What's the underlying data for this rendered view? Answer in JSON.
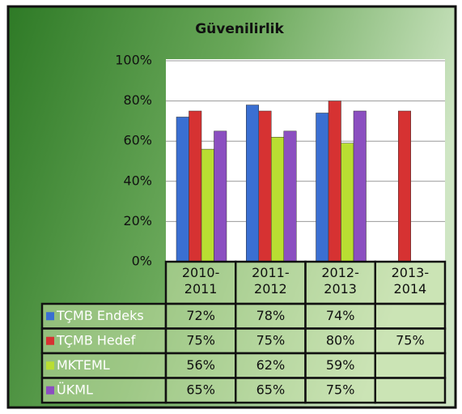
{
  "chart_data": {
    "type": "bar",
    "title": "Güvenilirlik",
    "categories": [
      "2010-2011",
      "2011-2012",
      "2012-2013",
      "2013-2014"
    ],
    "series": [
      {
        "name": "TÇMB Endeks",
        "color": "#3a6fd2",
        "values": [
          72,
          78,
          74,
          null
        ],
        "value_labels": [
          "72%",
          "78%",
          "74%",
          null
        ]
      },
      {
        "name": "TÇMB Hedef",
        "color": "#d63232",
        "values": [
          75,
          75,
          80,
          75
        ],
        "value_labels": [
          "75%",
          "75%",
          "80%",
          "75%"
        ]
      },
      {
        "name": "MKTEML",
        "color": "#b9de32",
        "values": [
          56,
          62,
          59,
          null
        ],
        "value_labels": [
          "56%",
          "62%",
          "59%",
          null
        ]
      },
      {
        "name": "ÜKML",
        "color": "#8b4fc0",
        "values": [
          65,
          65,
          75,
          null
        ],
        "value_labels": [
          "65%",
          "65%",
          "75%",
          null
        ]
      }
    ],
    "ylim": [
      0,
      100
    ],
    "yticks": [
      {
        "value": 0,
        "label": "0%"
      },
      {
        "value": 20,
        "label": "20%"
      },
      {
        "value": 40,
        "label": "40%"
      },
      {
        "value": 60,
        "label": "60%"
      },
      {
        "value": 80,
        "label": "80%"
      },
      {
        "value": 100,
        "label": "100%"
      }
    ],
    "grid": true
  }
}
